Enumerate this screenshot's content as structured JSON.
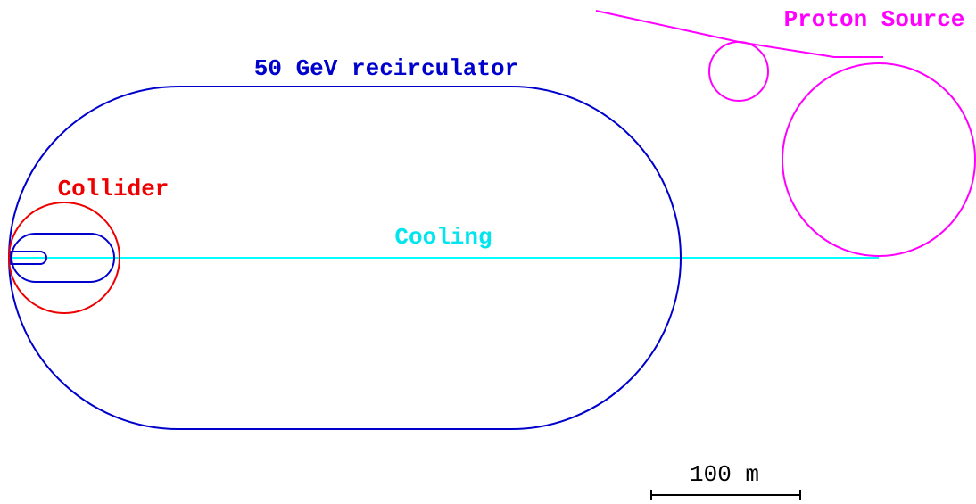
{
  "labels": {
    "proton_source": "Proton Source",
    "recirculator": "50 GeV recirculator",
    "collider": "Collider",
    "cooling": "Cooling",
    "scale": "100 m"
  }
}
